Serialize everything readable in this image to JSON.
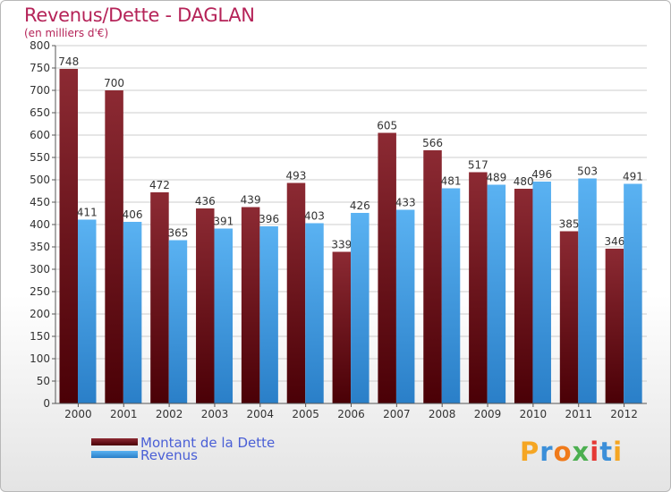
{
  "title": "Revenus/Dette - DAGLAN",
  "subtitle": "(en milliers d'€)",
  "chart_data": {
    "type": "bar",
    "categories": [
      "2000",
      "2001",
      "2002",
      "2003",
      "2004",
      "2005",
      "2006",
      "2007",
      "2008",
      "2009",
      "2010",
      "2011",
      "2012"
    ],
    "series": [
      {
        "name": "Montant de la Dette",
        "values": [
          748,
          700,
          472,
          436,
          439,
          493,
          339,
          605,
          566,
          517,
          480,
          385,
          346
        ],
        "color": "#6b1218"
      },
      {
        "name": "Revenus",
        "values": [
          411,
          406,
          365,
          391,
          396,
          403,
          426,
          433,
          481,
          489,
          496,
          503,
          491
        ],
        "color": "#4aa3e6"
      }
    ],
    "yticks": [
      0,
      50,
      100,
      150,
      200,
      250,
      300,
      350,
      400,
      450,
      500,
      550,
      600,
      650,
      700,
      750,
      800
    ],
    "ylim": [
      0,
      800
    ],
    "grid": true,
    "legend_position": "bottom-left"
  },
  "legend": {
    "dette_label": "Montant de la Dette",
    "revenus_label": "Revenus"
  },
  "logo": {
    "letters": [
      "P",
      "r",
      "o",
      "x",
      "i",
      "t",
      "i"
    ],
    "colors": [
      "#f5a623",
      "#3b8fd9",
      "#f07a1a",
      "#4caf50",
      "#e53935",
      "#3b8fd9",
      "#f5a623"
    ]
  }
}
